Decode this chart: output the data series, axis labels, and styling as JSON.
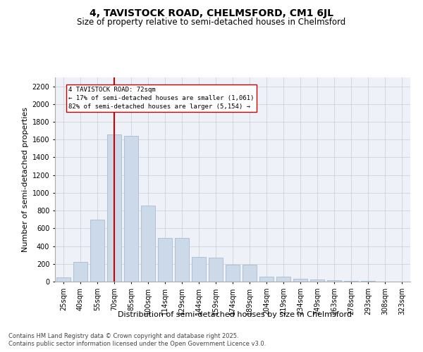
{
  "title": "4, TAVISTOCK ROAD, CHELMSFORD, CM1 6JL",
  "subtitle": "Size of property relative to semi-detached houses in Chelmsford",
  "xlabel": "Distribution of semi-detached houses by size in Chelmsford",
  "ylabel": "Number of semi-detached properties",
  "categories": [
    "25sqm",
    "40sqm",
    "55sqm",
    "70sqm",
    "85sqm",
    "100sqm",
    "114sqm",
    "129sqm",
    "144sqm",
    "159sqm",
    "174sqm",
    "189sqm",
    "204sqm",
    "219sqm",
    "234sqm",
    "249sqm",
    "263sqm",
    "278sqm",
    "293sqm",
    "308sqm",
    "323sqm"
  ],
  "values": [
    50,
    220,
    700,
    1660,
    1640,
    860,
    490,
    490,
    280,
    270,
    190,
    190,
    55,
    55,
    30,
    20,
    15,
    10,
    5,
    0,
    2
  ],
  "bar_color": "#ccd9e8",
  "bar_edge_color": "#9ab5cc",
  "red_line_index": 3,
  "annotation_title": "4 TAVISTOCK ROAD: 72sqm",
  "annotation_smaller": "← 17% of semi-detached houses are smaller (1,061)",
  "annotation_larger": "82% of semi-detached houses are larger (5,154) →",
  "property_line_color": "#cc0000",
  "annotation_box_color": "#ffffff",
  "annotation_box_edge": "#cc0000",
  "ylim": [
    0,
    2300
  ],
  "yticks": [
    0,
    200,
    400,
    600,
    800,
    1000,
    1200,
    1400,
    1600,
    1800,
    2000,
    2200
  ],
  "grid_color": "#cccccc",
  "background_color": "#eef2f8",
  "footer_line1": "Contains HM Land Registry data © Crown copyright and database right 2025.",
  "footer_line2": "Contains public sector information licensed under the Open Government Licence v3.0.",
  "title_fontsize": 10,
  "subtitle_fontsize": 8.5,
  "axis_label_fontsize": 8,
  "tick_fontsize": 7,
  "footer_fontsize": 6
}
